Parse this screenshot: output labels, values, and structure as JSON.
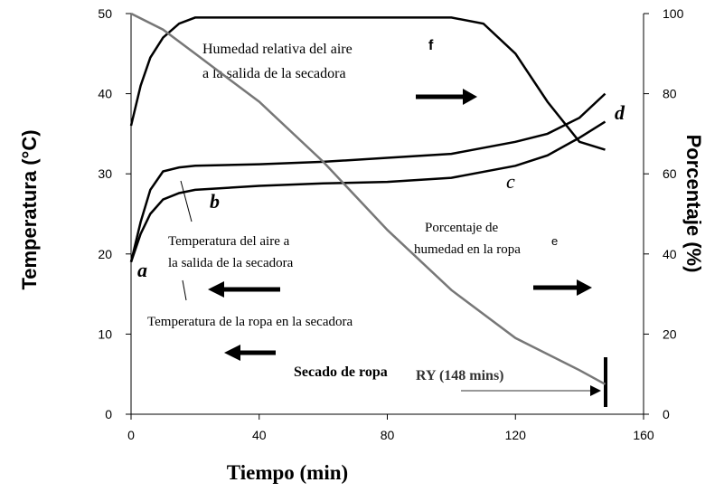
{
  "chart_data": {
    "type": "line",
    "x_label": "Tiempo (min)",
    "y_label": "Temperatura (°C)",
    "y2_label": "Porcentaje (%)",
    "xlim": [
      0,
      160
    ],
    "xticks": [
      0,
      40,
      80,
      120,
      160
    ],
    "ylim": [
      0,
      50
    ],
    "yticks": [
      0,
      10,
      20,
      30,
      40,
      50
    ],
    "y2lim": [
      0,
      100
    ],
    "y2ticks": [
      0,
      20,
      40,
      60,
      80,
      100
    ],
    "series": [
      {
        "name": "Temperatura del aire a la salida de la secadora",
        "color": "#000000",
        "axis": "y",
        "x": [
          0,
          3,
          6,
          10,
          15,
          20,
          40,
          60,
          80,
          100,
          120,
          130,
          140,
          148
        ],
        "values": [
          19,
          24,
          28,
          30.3,
          30.8,
          31,
          31.2,
          31.5,
          32,
          32.5,
          34,
          35,
          37,
          40
        ]
      },
      {
        "name": "Temperatura de la ropa en la secadora",
        "color": "#000000",
        "axis": "y",
        "x": [
          0,
          3,
          6,
          10,
          15,
          20,
          40,
          60,
          80,
          100,
          120,
          130,
          140,
          148
        ],
        "values": [
          19,
          22.5,
          25,
          26.8,
          27.6,
          28,
          28.5,
          28.8,
          29,
          29.5,
          31,
          32.3,
          34.5,
          36.5
        ]
      },
      {
        "name": "Humedad relativa del aire a la salida de la secadora",
        "color": "#000000",
        "axis": "y2",
        "x": [
          0,
          3,
          6,
          10,
          15,
          20,
          40,
          60,
          80,
          100,
          110,
          120,
          130,
          140,
          148
        ],
        "values": [
          72,
          82,
          89,
          94,
          97.5,
          99,
          99,
          99,
          99,
          99,
          97.5,
          90,
          78,
          68,
          66
        ]
      },
      {
        "name": "Porcentaje de humedad en la ropa",
        "color": "#777777",
        "axis": "y2",
        "x": [
          0,
          10,
          20,
          40,
          60,
          80,
          100,
          120,
          140,
          148
        ],
        "values": [
          100,
          96,
          90,
          78,
          63,
          46,
          31,
          19,
          11,
          7.5
        ]
      }
    ],
    "annotations": {
      "rh_1": "Humedad relativa del aire",
      "rh_2": "a la salida de la secadora",
      "moist_1": "Porcentaje de",
      "moist_2": "humedad en la ropa",
      "air_1": "Temperatura del aire a",
      "air_2": "la salida de la secadora",
      "clothes": "Temperatura de la ropa en la secadora",
      "drying": "Secado de ropa",
      "dry_time": "RY  (148 mins)",
      "a": "a",
      "b": "b",
      "c": "c",
      "d": "d",
      "f": "f",
      "e": "e"
    }
  }
}
